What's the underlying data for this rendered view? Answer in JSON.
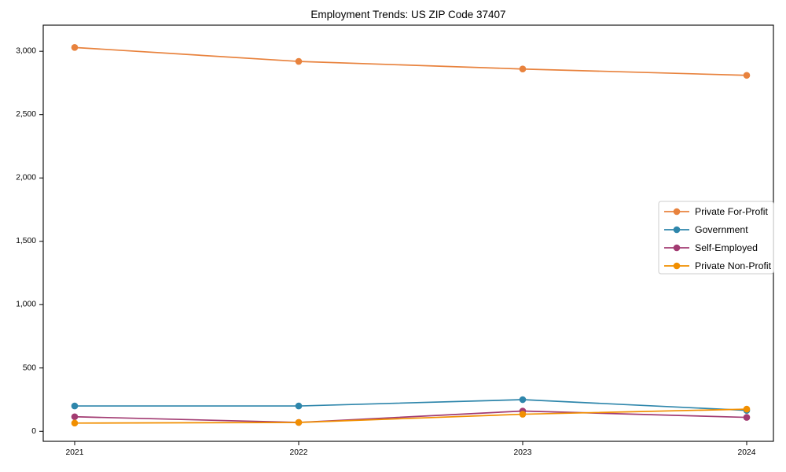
{
  "figure": {
    "background": "#ffffff"
  },
  "chart_data": {
    "type": "line",
    "title": "Employment Trends: US ZIP Code 37407",
    "x": [
      "2021",
      "2022",
      "2023",
      "2024"
    ],
    "xlabel": "",
    "ylabel": "",
    "ylim": [
      0,
      3000
    ],
    "yticks": [
      0,
      500,
      1000,
      1500,
      2000,
      2500,
      3000
    ],
    "grid": false,
    "legend_position": "center-right",
    "marker": "circle",
    "series": [
      {
        "name": "Private For-Profit",
        "color": "#E8823D",
        "values": [
          3030,
          2920,
          2860,
          2810
        ]
      },
      {
        "name": "Government",
        "color": "#2E86AB",
        "values": [
          200,
          200,
          250,
          165
        ]
      },
      {
        "name": "Self-Employed",
        "color": "#A23B72",
        "values": [
          115,
          70,
          160,
          110
        ]
      },
      {
        "name": "Private Non-Profit",
        "color": "#F18F01",
        "values": [
          65,
          70,
          135,
          175
        ]
      }
    ]
  }
}
